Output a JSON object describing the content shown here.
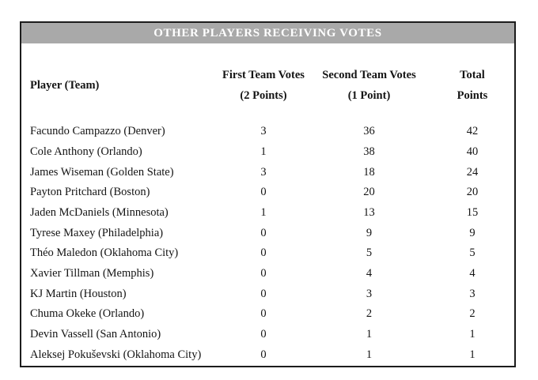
{
  "title_bar": {
    "title": "OTHER PLAYERS RECEIVING VOTES"
  },
  "colors": {
    "page_bg": "#ffffff",
    "title_bar_bg": "#a9a9a9",
    "title_text": "#ffffff",
    "table_border": "#1c1c1c",
    "body_text": "#141414"
  },
  "table": {
    "columns": [
      {
        "line1": "Player (Team)",
        "line2": ""
      },
      {
        "line1": "First Team Votes",
        "line2": "(2 Points)"
      },
      {
        "line1": "Second Team Votes",
        "line2": "(1 Point)"
      },
      {
        "line1": "Total",
        "line2": "Points"
      }
    ],
    "rows": [
      {
        "player": "Facundo Campazzo (Denver)",
        "first": "3",
        "second": "36",
        "total": "42"
      },
      {
        "player": "Cole Anthony (Orlando)",
        "first": "1",
        "second": "38",
        "total": "40"
      },
      {
        "player": "James Wiseman (Golden State)",
        "first": "3",
        "second": "18",
        "total": "24"
      },
      {
        "player": "Payton Pritchard (Boston)",
        "first": "0",
        "second": "20",
        "total": "20"
      },
      {
        "player": "Jaden McDaniels (Minnesota)",
        "first": "1",
        "second": "13",
        "total": "15"
      },
      {
        "player": "Tyrese Maxey (Philadelphia)",
        "first": "0",
        "second": "9",
        "total": "9"
      },
      {
        "player": "Théo Maledon (Oklahoma City)",
        "first": "0",
        "second": "5",
        "total": "5"
      },
      {
        "player": "Xavier Tillman (Memphis)",
        "first": "0",
        "second": "4",
        "total": "4"
      },
      {
        "player": "KJ Martin (Houston)",
        "first": "0",
        "second": "3",
        "total": "3"
      },
      {
        "player": "Chuma Okeke (Orlando)",
        "first": "0",
        "second": "2",
        "total": "2"
      },
      {
        "player": "Devin Vassell (San Antonio)",
        "first": "0",
        "second": "1",
        "total": "1"
      },
      {
        "player": "Aleksej Pokuševski (Oklahoma City)",
        "first": "0",
        "second": "1",
        "total": "1"
      }
    ]
  },
  "chart_data": {
    "type": "table",
    "title": "OTHER PLAYERS RECEIVING VOTES",
    "columns": [
      "Player (Team)",
      "First Team Votes (2 Points)",
      "Second Team Votes (1 Point)",
      "Total Points"
    ],
    "rows": [
      [
        "Facundo Campazzo (Denver)",
        3,
        36,
        42
      ],
      [
        "Cole Anthony (Orlando)",
        1,
        38,
        40
      ],
      [
        "James Wiseman (Golden State)",
        3,
        18,
        24
      ],
      [
        "Payton Pritchard (Boston)",
        0,
        20,
        20
      ],
      [
        "Jaden McDaniels (Minnesota)",
        1,
        13,
        15
      ],
      [
        "Tyrese Maxey (Philadelphia)",
        0,
        9,
        9
      ],
      [
        "Théo Maledon (Oklahoma City)",
        0,
        5,
        5
      ],
      [
        "Xavier Tillman (Memphis)",
        0,
        4,
        4
      ],
      [
        "KJ Martin (Houston)",
        0,
        3,
        3
      ],
      [
        "Chuma Okeke (Orlando)",
        0,
        2,
        2
      ],
      [
        "Devin Vassell (San Antonio)",
        0,
        1,
        1
      ],
      [
        "Aleksej Pokuševski (Oklahoma City)",
        0,
        1,
        1
      ]
    ],
    "layout_hints": {
      "value_columns_alignment": "center",
      "player_column_alignment": "left",
      "grid": false,
      "header_style": "bold two-line serif",
      "title_style": "white bold on gray bar"
    }
  }
}
